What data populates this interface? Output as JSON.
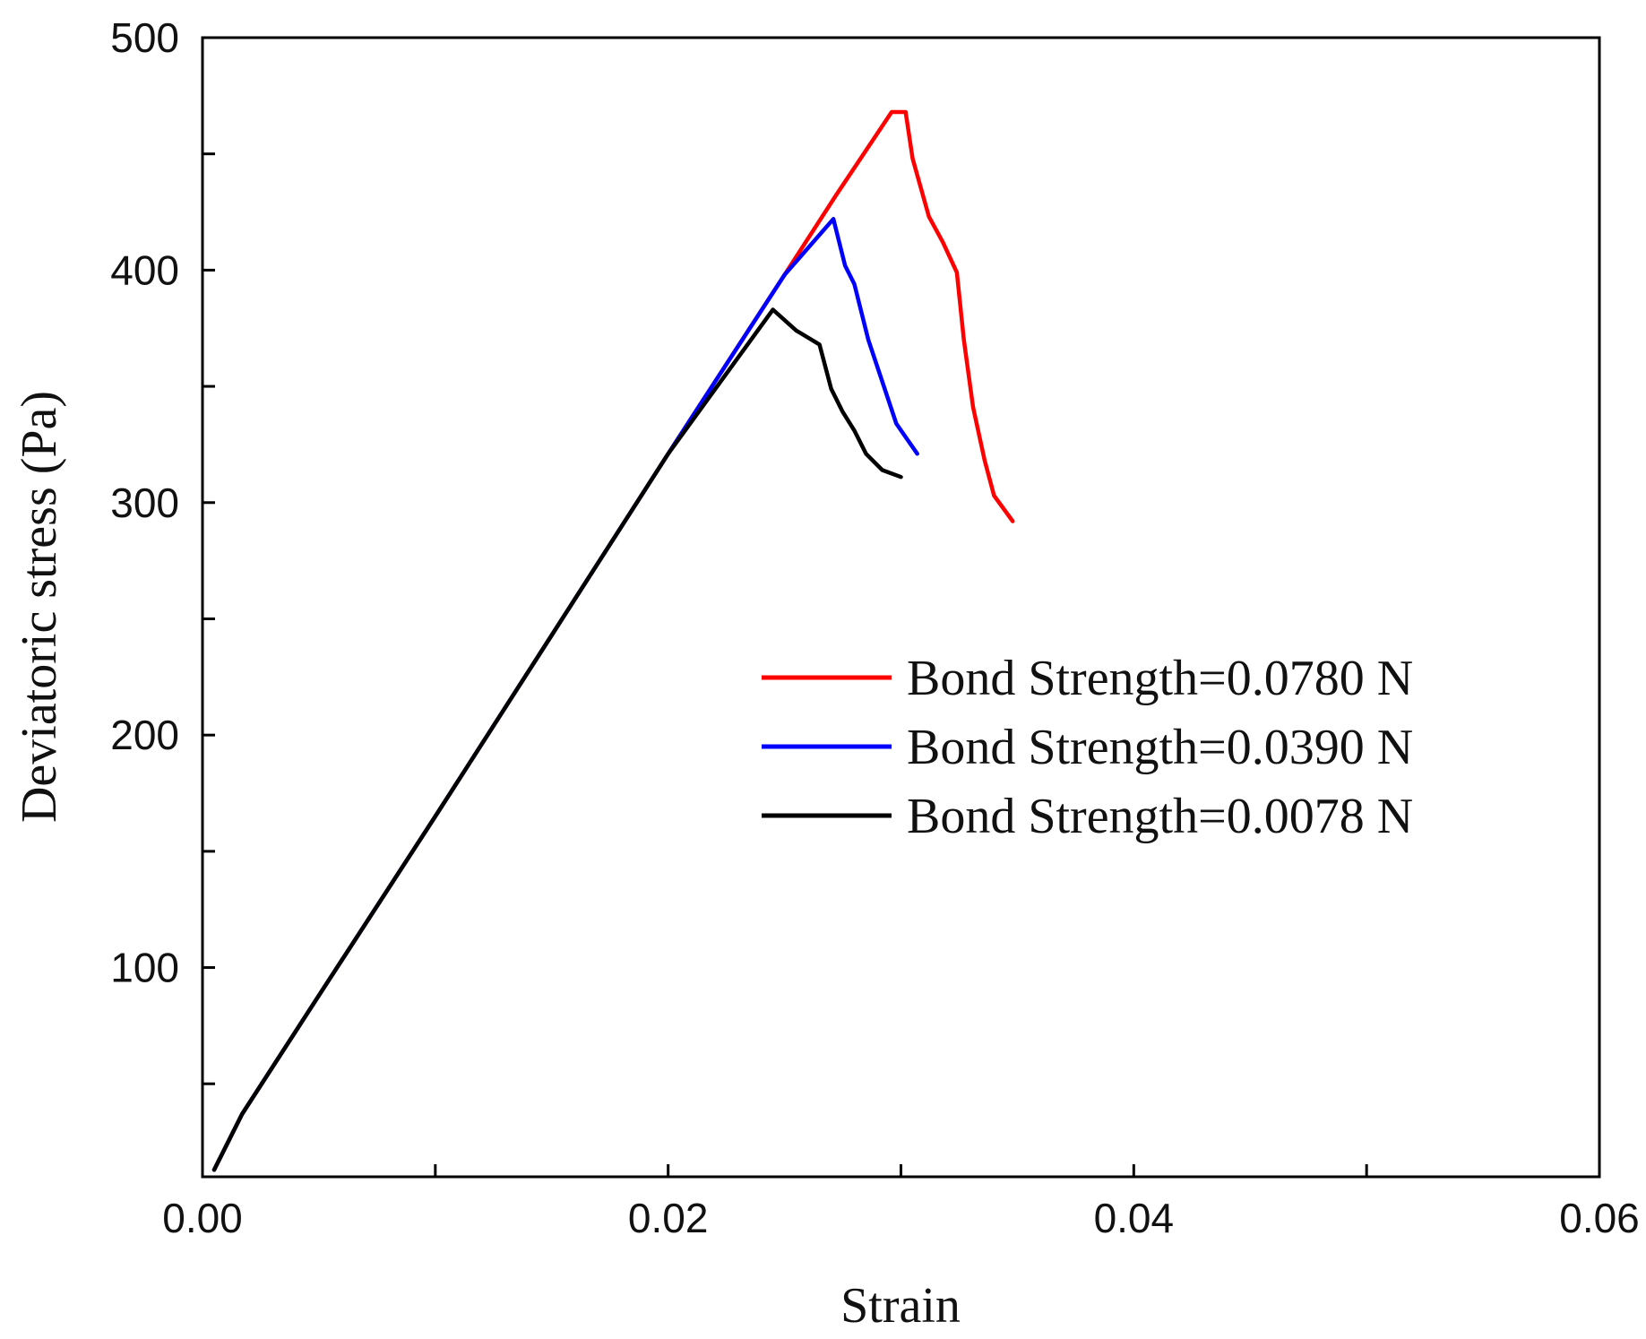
{
  "chart_data": {
    "type": "line",
    "title": "",
    "xlabel": "Strain",
    "ylabel": "Deviatoric stress (Pa)",
    "xlim": [
      0.0,
      0.06
    ],
    "ylim": [
      10,
      500
    ],
    "x_ticks": [
      0.0,
      0.01,
      0.02,
      0.03,
      0.04,
      0.05,
      0.06
    ],
    "x_tick_labels": [
      "0.00",
      "",
      "0.02",
      "",
      "0.04",
      "",
      "0.06"
    ],
    "y_ticks": [
      50,
      100,
      150,
      200,
      250,
      300,
      350,
      400,
      450,
      500
    ],
    "y_tick_labels": [
      "",
      "100",
      "",
      "200",
      "",
      "300",
      "",
      "400",
      "",
      "500"
    ],
    "grid": false,
    "legend_position": "center-right",
    "series": [
      {
        "name": "Bond Strength=0.0780 N",
        "color": "#ff0000",
        "points": [
          [
            0.0005,
            13
          ],
          [
            0.0017,
            37
          ],
          [
            0.005,
            88
          ],
          [
            0.01,
            165
          ],
          [
            0.015,
            243
          ],
          [
            0.02,
            321
          ],
          [
            0.025,
            398
          ],
          [
            0.0272,
            432
          ],
          [
            0.0296,
            468
          ],
          [
            0.0302,
            468
          ],
          [
            0.0305,
            448
          ],
          [
            0.0312,
            423
          ],
          [
            0.0318,
            412
          ],
          [
            0.0324,
            399
          ],
          [
            0.0327,
            370
          ],
          [
            0.0331,
            341
          ],
          [
            0.0336,
            318
          ],
          [
            0.034,
            303
          ],
          [
            0.0348,
            292
          ]
        ]
      },
      {
        "name": "Bond Strength=0.0390 N",
        "color": "#0000ff",
        "points": [
          [
            0.0005,
            13
          ],
          [
            0.0017,
            37
          ],
          [
            0.005,
            88
          ],
          [
            0.01,
            165
          ],
          [
            0.015,
            243
          ],
          [
            0.02,
            321
          ],
          [
            0.025,
            398
          ],
          [
            0.0271,
            422
          ],
          [
            0.0276,
            402
          ],
          [
            0.028,
            394
          ],
          [
            0.0286,
            370
          ],
          [
            0.0292,
            352
          ],
          [
            0.0298,
            334
          ],
          [
            0.0307,
            321
          ]
        ]
      },
      {
        "name": "Bond Strength=0.0078 N",
        "color": "#000000",
        "points": [
          [
            0.0005,
            13
          ],
          [
            0.0017,
            37
          ],
          [
            0.005,
            88
          ],
          [
            0.01,
            165
          ],
          [
            0.015,
            243
          ],
          [
            0.02,
            321
          ],
          [
            0.0245,
            383
          ],
          [
            0.0255,
            374
          ],
          [
            0.0265,
            368
          ],
          [
            0.027,
            349
          ],
          [
            0.0275,
            339
          ],
          [
            0.028,
            331
          ],
          [
            0.0285,
            321
          ],
          [
            0.0292,
            314
          ],
          [
            0.03,
            311
          ]
        ]
      }
    ]
  }
}
